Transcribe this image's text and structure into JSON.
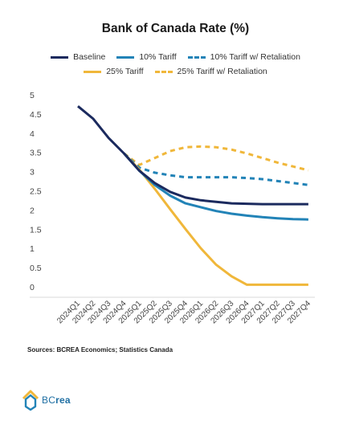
{
  "chart_data": {
    "type": "line",
    "title": "Bank of Canada Rate (%)",
    "xlabel": "",
    "ylabel": "",
    "ylim": [
      0,
      5
    ],
    "yticks": [
      "0",
      "0.5",
      "1",
      "1.5",
      "2",
      "2.5",
      "3",
      "3.5",
      "4",
      "4.5",
      "5"
    ],
    "ytick_values": [
      0,
      0.5,
      1,
      1.5,
      2,
      2.5,
      3,
      3.5,
      4,
      4.5,
      5
    ],
    "categories": [
      "2024Q1",
      "2024Q2",
      "2024Q3",
      "2024Q4",
      "2025Q1",
      "2025Q2",
      "2025Q3",
      "2025Q4",
      "2026Q1",
      "2026Q2",
      "2026Q3",
      "2026Q4",
      "2027Q1",
      "2027Q2",
      "2027Q3",
      "2027Q4"
    ],
    "legend_placement": "top",
    "grid": false,
    "series": [
      {
        "name": "Baseline",
        "color": "#1b2a5e",
        "dash": false,
        "values": [
          4.85,
          4.52,
          4.02,
          3.62,
          3.17,
          2.85,
          2.62,
          2.47,
          2.4,
          2.36,
          2.32,
          2.31,
          2.3,
          2.3,
          2.3,
          2.3
        ]
      },
      {
        "name": "10% Tariff",
        "color": "#2283b7",
        "dash": false,
        "values": [
          null,
          null,
          null,
          3.62,
          3.17,
          2.8,
          2.52,
          2.32,
          2.22,
          2.12,
          2.05,
          2.0,
          1.96,
          1.93,
          1.91,
          1.9
        ]
      },
      {
        "name": "10% Tariff w/ Retaliation",
        "color": "#2283b7",
        "dash": true,
        "values": [
          null,
          null,
          null,
          3.62,
          3.25,
          3.12,
          3.05,
          3.0,
          3.0,
          3.0,
          3.0,
          2.98,
          2.95,
          2.9,
          2.85,
          2.8
        ]
      },
      {
        "name": "25% Tariff",
        "color": "#f0b73a",
        "dash": false,
        "values": [
          null,
          null,
          null,
          3.62,
          3.2,
          2.7,
          2.17,
          1.65,
          1.15,
          0.72,
          0.42,
          0.2,
          0.2,
          0.2,
          0.2,
          0.2
        ]
      },
      {
        "name": "25% Tariff w/ Retaliation",
        "color": "#f0b73a",
        "dash": true,
        "values": [
          null,
          null,
          null,
          3.62,
          3.32,
          3.5,
          3.68,
          3.78,
          3.8,
          3.78,
          3.72,
          3.62,
          3.5,
          3.38,
          3.28,
          3.18
        ]
      }
    ]
  },
  "source": "Sources: BCREA Economics; Statistics Canada",
  "logo": {
    "text_light": "BC",
    "text_bold": "rea"
  }
}
